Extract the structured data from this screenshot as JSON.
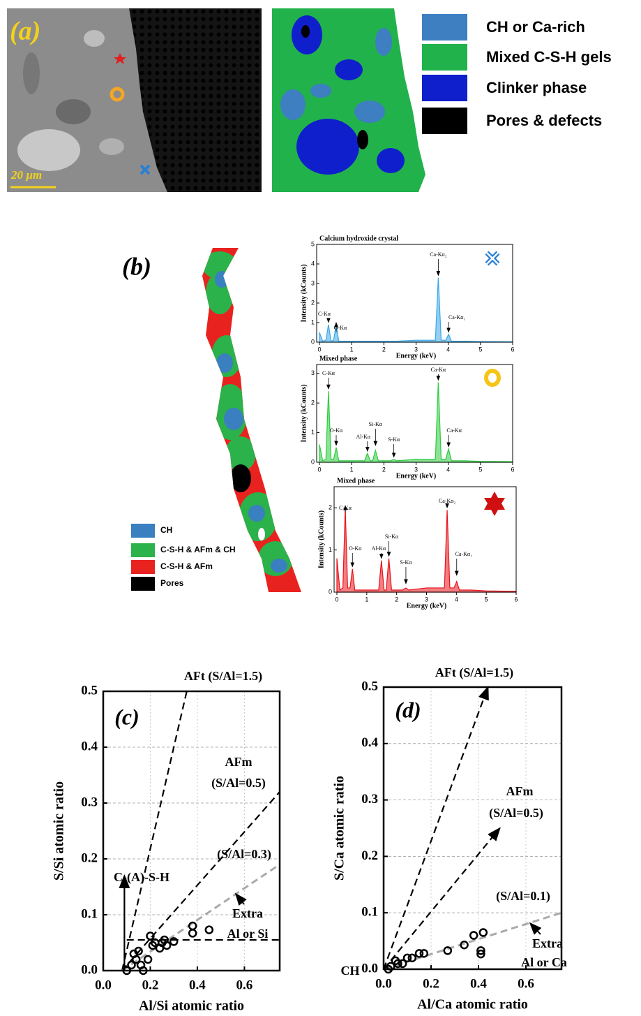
{
  "panel_a": {
    "label": "(a)",
    "scale_bar": "20 µm",
    "legend": [
      {
        "name": "CH or Ca-rich",
        "color": "#3d7fc1"
      },
      {
        "name": "Mixed C-S-H gels",
        "color": "#22b24c"
      },
      {
        "name": "Clinker phase",
        "color": "#0f1fcc"
      },
      {
        "name": "Pores & defects",
        "color": "#000000"
      }
    ]
  },
  "panel_b": {
    "label": "(b)",
    "legend": [
      {
        "name": "CH",
        "color": "#3a7fbf"
      },
      {
        "name": "C-S-H & AFm & CH",
        "color": "#2bb24a"
      },
      {
        "name": "C-S-H & AFm",
        "color": "#e8231f"
      },
      {
        "name": "Pores",
        "color": "#000000"
      }
    ]
  },
  "chart_data": [
    {
      "type": "line",
      "title": "Calcium hydroxide crystal",
      "x_label": "Energy (keV)",
      "y_label": "Intensity (kCounts)",
      "color": "#3aa8e8",
      "x": [
        0,
        0.1,
        0.2,
        0.28,
        0.36,
        0.44,
        0.52,
        0.6,
        0.8,
        1.0,
        1.4,
        1.49,
        1.58,
        1.65,
        1.74,
        1.83,
        2.2,
        2.31,
        2.4,
        3.0,
        3.6,
        3.69,
        3.78,
        3.92,
        4.01,
        4.1,
        4.5,
        5.0,
        6.0
      ],
      "values": [
        0.5,
        0.05,
        0.1,
        0.9,
        0.05,
        0.1,
        0.9,
        0.05,
        0.05,
        0.05,
        0.05,
        0.05,
        0.05,
        0.05,
        0.05,
        0.05,
        0.05,
        0.05,
        0.05,
        0.1,
        0.1,
        3.3,
        0.1,
        0.1,
        0.4,
        0.05,
        0.05,
        0.03,
        0.02
      ],
      "annotations": [
        "C-Kα",
        "O-Kα",
        "Ca-Kα₂",
        "Ca-Kα₁"
      ],
      "xlim": [
        0,
        6
      ],
      "xticks": [
        0,
        1,
        2,
        3,
        4,
        5,
        6
      ],
      "ylim": [
        0,
        5
      ],
      "yticks": [
        0,
        1,
        2,
        3,
        4,
        5
      ]
    },
    {
      "type": "line",
      "title": "Mixed phase",
      "x_label": "Energy (keV)",
      "y_label": "Intensity (kCounts)",
      "color": "#2ecc40",
      "x": [
        0,
        0.1,
        0.2,
        0.28,
        0.36,
        0.44,
        0.52,
        0.6,
        0.8,
        1.0,
        1.4,
        1.49,
        1.58,
        1.65,
        1.74,
        1.83,
        2.2,
        2.31,
        2.4,
        3.0,
        3.6,
        3.69,
        3.78,
        3.92,
        4.01,
        4.1,
        4.5,
        5.0,
        6.0
      ],
      "values": [
        0.6,
        0.05,
        0.1,
        2.4,
        0.1,
        0.1,
        0.5,
        0.05,
        0.05,
        0.05,
        0.05,
        0.3,
        0.05,
        0.05,
        0.4,
        0.05,
        0.05,
        0.1,
        0.05,
        0.1,
        0.1,
        2.7,
        0.1,
        0.1,
        0.45,
        0.05,
        0.05,
        0.03,
        0.02
      ],
      "annotations": [
        "C-Kα",
        "O-Kα",
        "Al-Kα",
        "Si-Kα",
        "S-Kα",
        "Ca-Kα",
        "Ca-Kα"
      ],
      "xlim": [
        0,
        6
      ],
      "xticks": [
        0,
        1,
        2,
        3,
        4,
        5,
        6
      ],
      "ylim": [
        0,
        3.3
      ],
      "yticks": [
        0,
        1,
        2,
        3
      ]
    },
    {
      "type": "line",
      "title": "Mixed phase",
      "x_label": "Energy (keV)",
      "y_label": "Intensity (kCounts)",
      "color": "#e8141c",
      "x": [
        0,
        0.1,
        0.2,
        0.28,
        0.36,
        0.44,
        0.52,
        0.6,
        0.8,
        1.0,
        1.4,
        1.49,
        1.58,
        1.65,
        1.74,
        1.83,
        2.2,
        2.31,
        2.4,
        3.0,
        3.6,
        3.69,
        3.78,
        3.92,
        4.01,
        4.1,
        4.5,
        5.0,
        6.0
      ],
      "values": [
        0.8,
        0.05,
        0.1,
        2.0,
        0.1,
        0.1,
        0.55,
        0.05,
        0.05,
        0.05,
        0.05,
        0.75,
        0.05,
        0.05,
        0.8,
        0.05,
        0.05,
        0.1,
        0.05,
        0.1,
        0.1,
        1.95,
        0.1,
        0.1,
        0.25,
        0.05,
        0.05,
        0.03,
        0.02
      ],
      "annotations": [
        "C-Kα",
        "O-Kα",
        "Al-Kα",
        "Si-Kα",
        "S-Kα",
        "Ca-Kα₂",
        "Ca-Kα₁"
      ],
      "xlim": [
        0,
        6
      ],
      "xticks": [
        0,
        1,
        2,
        3,
        4,
        5,
        6
      ],
      "ylim": [
        0,
        2.5
      ],
      "yticks": [
        0,
        1,
        2
      ]
    },
    {
      "type": "scatter",
      "panel_label": "(c)",
      "x_label": "Al/Si atomic ratio",
      "y_label": "S/Si atomic ratio",
      "x": [
        0.1,
        0.12,
        0.13,
        0.14,
        0.15,
        0.16,
        0.17,
        0.19,
        0.2,
        0.21,
        0.22,
        0.24,
        0.25,
        0.26,
        0.27,
        0.3,
        0.38,
        0.38,
        0.45
      ],
      "values": [
        0.0,
        0.01,
        0.03,
        0.02,
        0.035,
        0.01,
        0.0,
        0.02,
        0.062,
        0.045,
        0.05,
        0.04,
        0.05,
        0.055,
        0.045,
        0.052,
        0.08,
        0.067,
        0.073
      ],
      "lines": [
        {
          "x": [
            0.08,
            0.355
          ],
          "values": [
            0,
            0.5
          ],
          "color": "#000000",
          "dashed": true,
          "arrow": false
        },
        {
          "x": [
            0.08,
            0.75
          ],
          "values": [
            0,
            0.32
          ],
          "color": "#000000",
          "dashed": true,
          "arrow": false
        },
        {
          "x": [
            0.08,
            0.75
          ],
          "values": [
            0,
            0.19
          ],
          "color": "#aaaaaa",
          "dashed": true,
          "arrow": false
        },
        {
          "x": [
            0.1,
            0.75
          ],
          "values": [
            0.055,
            0.055
          ],
          "color": "#000000",
          "dashed": true,
          "arrow": false
        },
        {
          "x": [
            0.09,
            0.09
          ],
          "values": [
            0,
            0.17
          ],
          "color": "#000000",
          "dashed": false,
          "arrow": true
        }
      ],
      "annotations": [
        "AFt (S/Al=1.5)",
        "AFm",
        "(S/Al=0.5)",
        "(S/Al=0.3)",
        "C-(A)-S-H",
        "Extra",
        "Al or Si"
      ],
      "xlim": [
        0,
        0.75
      ],
      "xticks": [
        {
          "value": 0,
          "label": "0.0"
        },
        0.2,
        0.4,
        0.6
      ],
      "ylim": [
        0,
        0.5
      ],
      "yticks": [
        {
          "value": 0,
          "label": "0.0"
        },
        0.1,
        0.2,
        0.3,
        0.4,
        0.5
      ],
      "grid": true
    },
    {
      "type": "scatter",
      "panel_label": "(d)",
      "x_label": "Al/Ca atomic ratio",
      "y_label": "S/Ca atomic ratio",
      "x": [
        0.02,
        0.03,
        0.05,
        0.06,
        0.08,
        0.1,
        0.12,
        0.15,
        0.17,
        0.27,
        0.34,
        0.38,
        0.42,
        0.41,
        0.41
      ],
      "values": [
        0.0,
        0.005,
        0.015,
        0.01,
        0.01,
        0.02,
        0.02,
        0.028,
        0.028,
        0.033,
        0.043,
        0.06,
        0.065,
        0.033,
        0.027
      ],
      "lines": [
        {
          "x": [
            0,
            0.44
          ],
          "values": [
            0,
            0.5
          ],
          "color": "#000000",
          "dashed": true,
          "arrow": true
        },
        {
          "x": [
            0,
            0.49
          ],
          "values": [
            0,
            0.25
          ],
          "color": "#000000",
          "dashed": true,
          "arrow": true
        },
        {
          "x": [
            0,
            0.75
          ],
          "values": [
            0,
            0.1
          ],
          "color": "#aaaaaa",
          "dashed": true,
          "arrow": false
        }
      ],
      "annotations": [
        "AFt (S/Al=1.5)",
        "AFm",
        "(S/Al=0.5)",
        "(S/Al=0.1)",
        "Extra",
        "Al or Ca",
        "CH"
      ],
      "xlim": [
        0,
        0.75
      ],
      "xticks": [
        {
          "value": 0,
          "label": "0.0"
        },
        0.2,
        0.4,
        0.6
      ],
      "ylim": [
        0,
        0.5
      ],
      "yticks": [
        {
          "value": 0,
          "label": "0.0"
        },
        0.1,
        0.2,
        0.3,
        0.4,
        0.5
      ],
      "grid": true
    }
  ]
}
